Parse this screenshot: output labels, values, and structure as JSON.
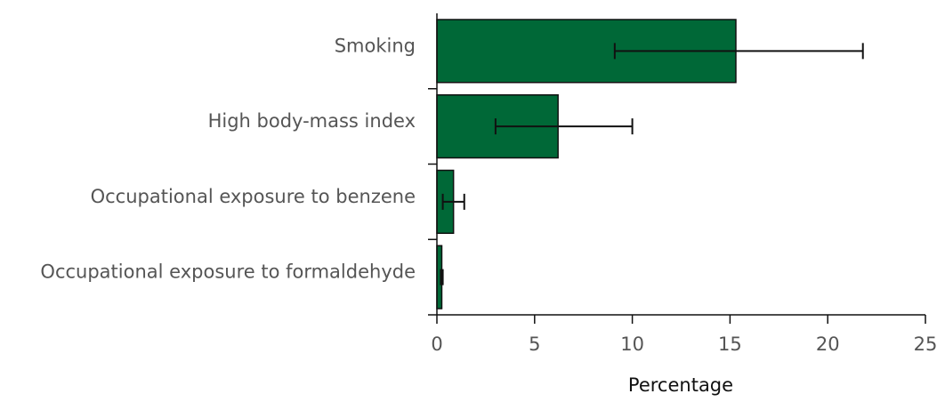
{
  "chart_data": {
    "type": "bar",
    "orientation": "horizontal",
    "categories": [
      "Smoking",
      "High body-mass index",
      "Occupational exposure to benzene",
      "Occupational exposure to formaldehyde"
    ],
    "values": [
      15.3,
      6.2,
      0.85,
      0.25
    ],
    "errors_low": [
      9.1,
      3.0,
      0.3,
      0.2
    ],
    "errors_high": [
      21.8,
      10.0,
      1.4,
      0.3
    ],
    "xlabel": "Percentage",
    "ylabel": "",
    "title": "",
    "xlim": [
      0,
      25
    ],
    "xticks": [
      "0",
      "5",
      "10",
      "15",
      "20",
      "25"
    ],
    "grid": false,
    "colors": {
      "bar": "#006837",
      "outline": "#111111"
    }
  }
}
